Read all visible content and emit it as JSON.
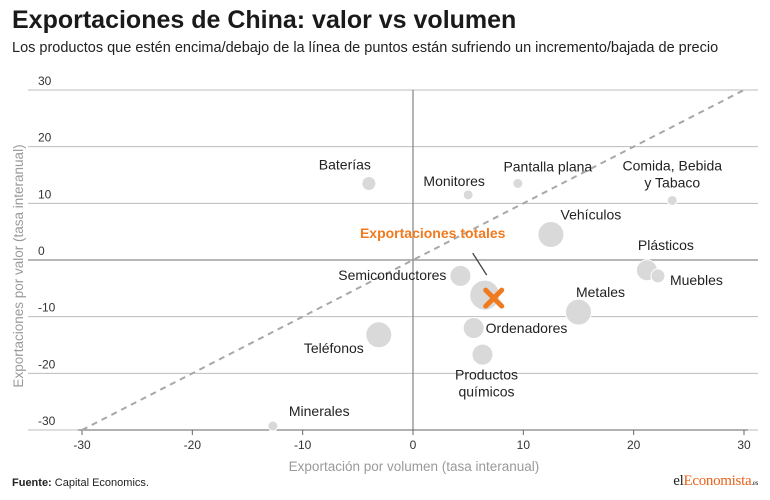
{
  "header": {
    "title": "Exportaciones de China: valor vs volumen",
    "subtitle": "Los productos que estén encima/debajo de la línea de puntos están sufriendo un incremento/bajada de precio"
  },
  "footer": {
    "source_label": "Fuente:",
    "source_text": "Capital Economics.",
    "brand_pre": "el",
    "brand_accent": "Economista",
    "brand_suffix": ".es"
  },
  "colors": {
    "bubble": "#d9d9d9",
    "highlight": "#f07a1e",
    "axis_label": "#9a9a9a",
    "grid": "#bcbcbc",
    "zero_line": "#8c8c8c",
    "diagonal": "#a8a8a8"
  },
  "chart_data": {
    "type": "scatter",
    "title": "Exportaciones de China: valor vs volumen",
    "xlabel": "Exportación por volumen (tasa interanual)",
    "ylabel": "Exportaciones por valor (tasa interanual)",
    "xlim": [
      -30,
      30
    ],
    "ylim": [
      -30,
      30
    ],
    "xticks": [
      -30,
      -20,
      -10,
      0,
      10,
      20,
      30
    ],
    "yticks": [
      -30,
      -20,
      -10,
      0,
      10,
      20,
      30
    ],
    "grid": "horizontal",
    "reference_line": "y = x",
    "points": [
      {
        "label": "Baterías",
        "x": -4,
        "y": 13.5,
        "size": "small"
      },
      {
        "label": "Monitores",
        "x": 5,
        "y": 11.5,
        "size": "tiny"
      },
      {
        "label": "Pantalla plana",
        "x": 9.5,
        "y": 13.5,
        "size": "tiny"
      },
      {
        "label": "Comida, Bebida y Tabaco",
        "x": 23.5,
        "y": 10.5,
        "size": "tiny"
      },
      {
        "label": "Vehículos",
        "x": 12.5,
        "y": 4.5,
        "size": "large"
      },
      {
        "label": "Plásticos",
        "x": 21.2,
        "y": -1.8,
        "size": "medium"
      },
      {
        "label": "Muebles",
        "x": 22.2,
        "y": -2.8,
        "size": "small"
      },
      {
        "label": "Semiconductores",
        "x": 4.3,
        "y": -2.8,
        "size": "medium"
      },
      {
        "label": "Exportaciones totales",
        "x": 6.5,
        "y": -6.2,
        "size": "xlarge",
        "highlight": true
      },
      {
        "label": "Metales",
        "x": 15,
        "y": -9.2,
        "size": "large"
      },
      {
        "label": "Ordenadores",
        "x": 5.5,
        "y": -12,
        "size": "medium"
      },
      {
        "label": "Teléfonos",
        "x": -3.1,
        "y": -13.2,
        "size": "large"
      },
      {
        "label": "Productos químicos",
        "x": 6.3,
        "y": -16.7,
        "size": "medium"
      },
      {
        "label": "Minerales",
        "x": -12.7,
        "y": -29.3,
        "size": "tiny"
      }
    ]
  }
}
